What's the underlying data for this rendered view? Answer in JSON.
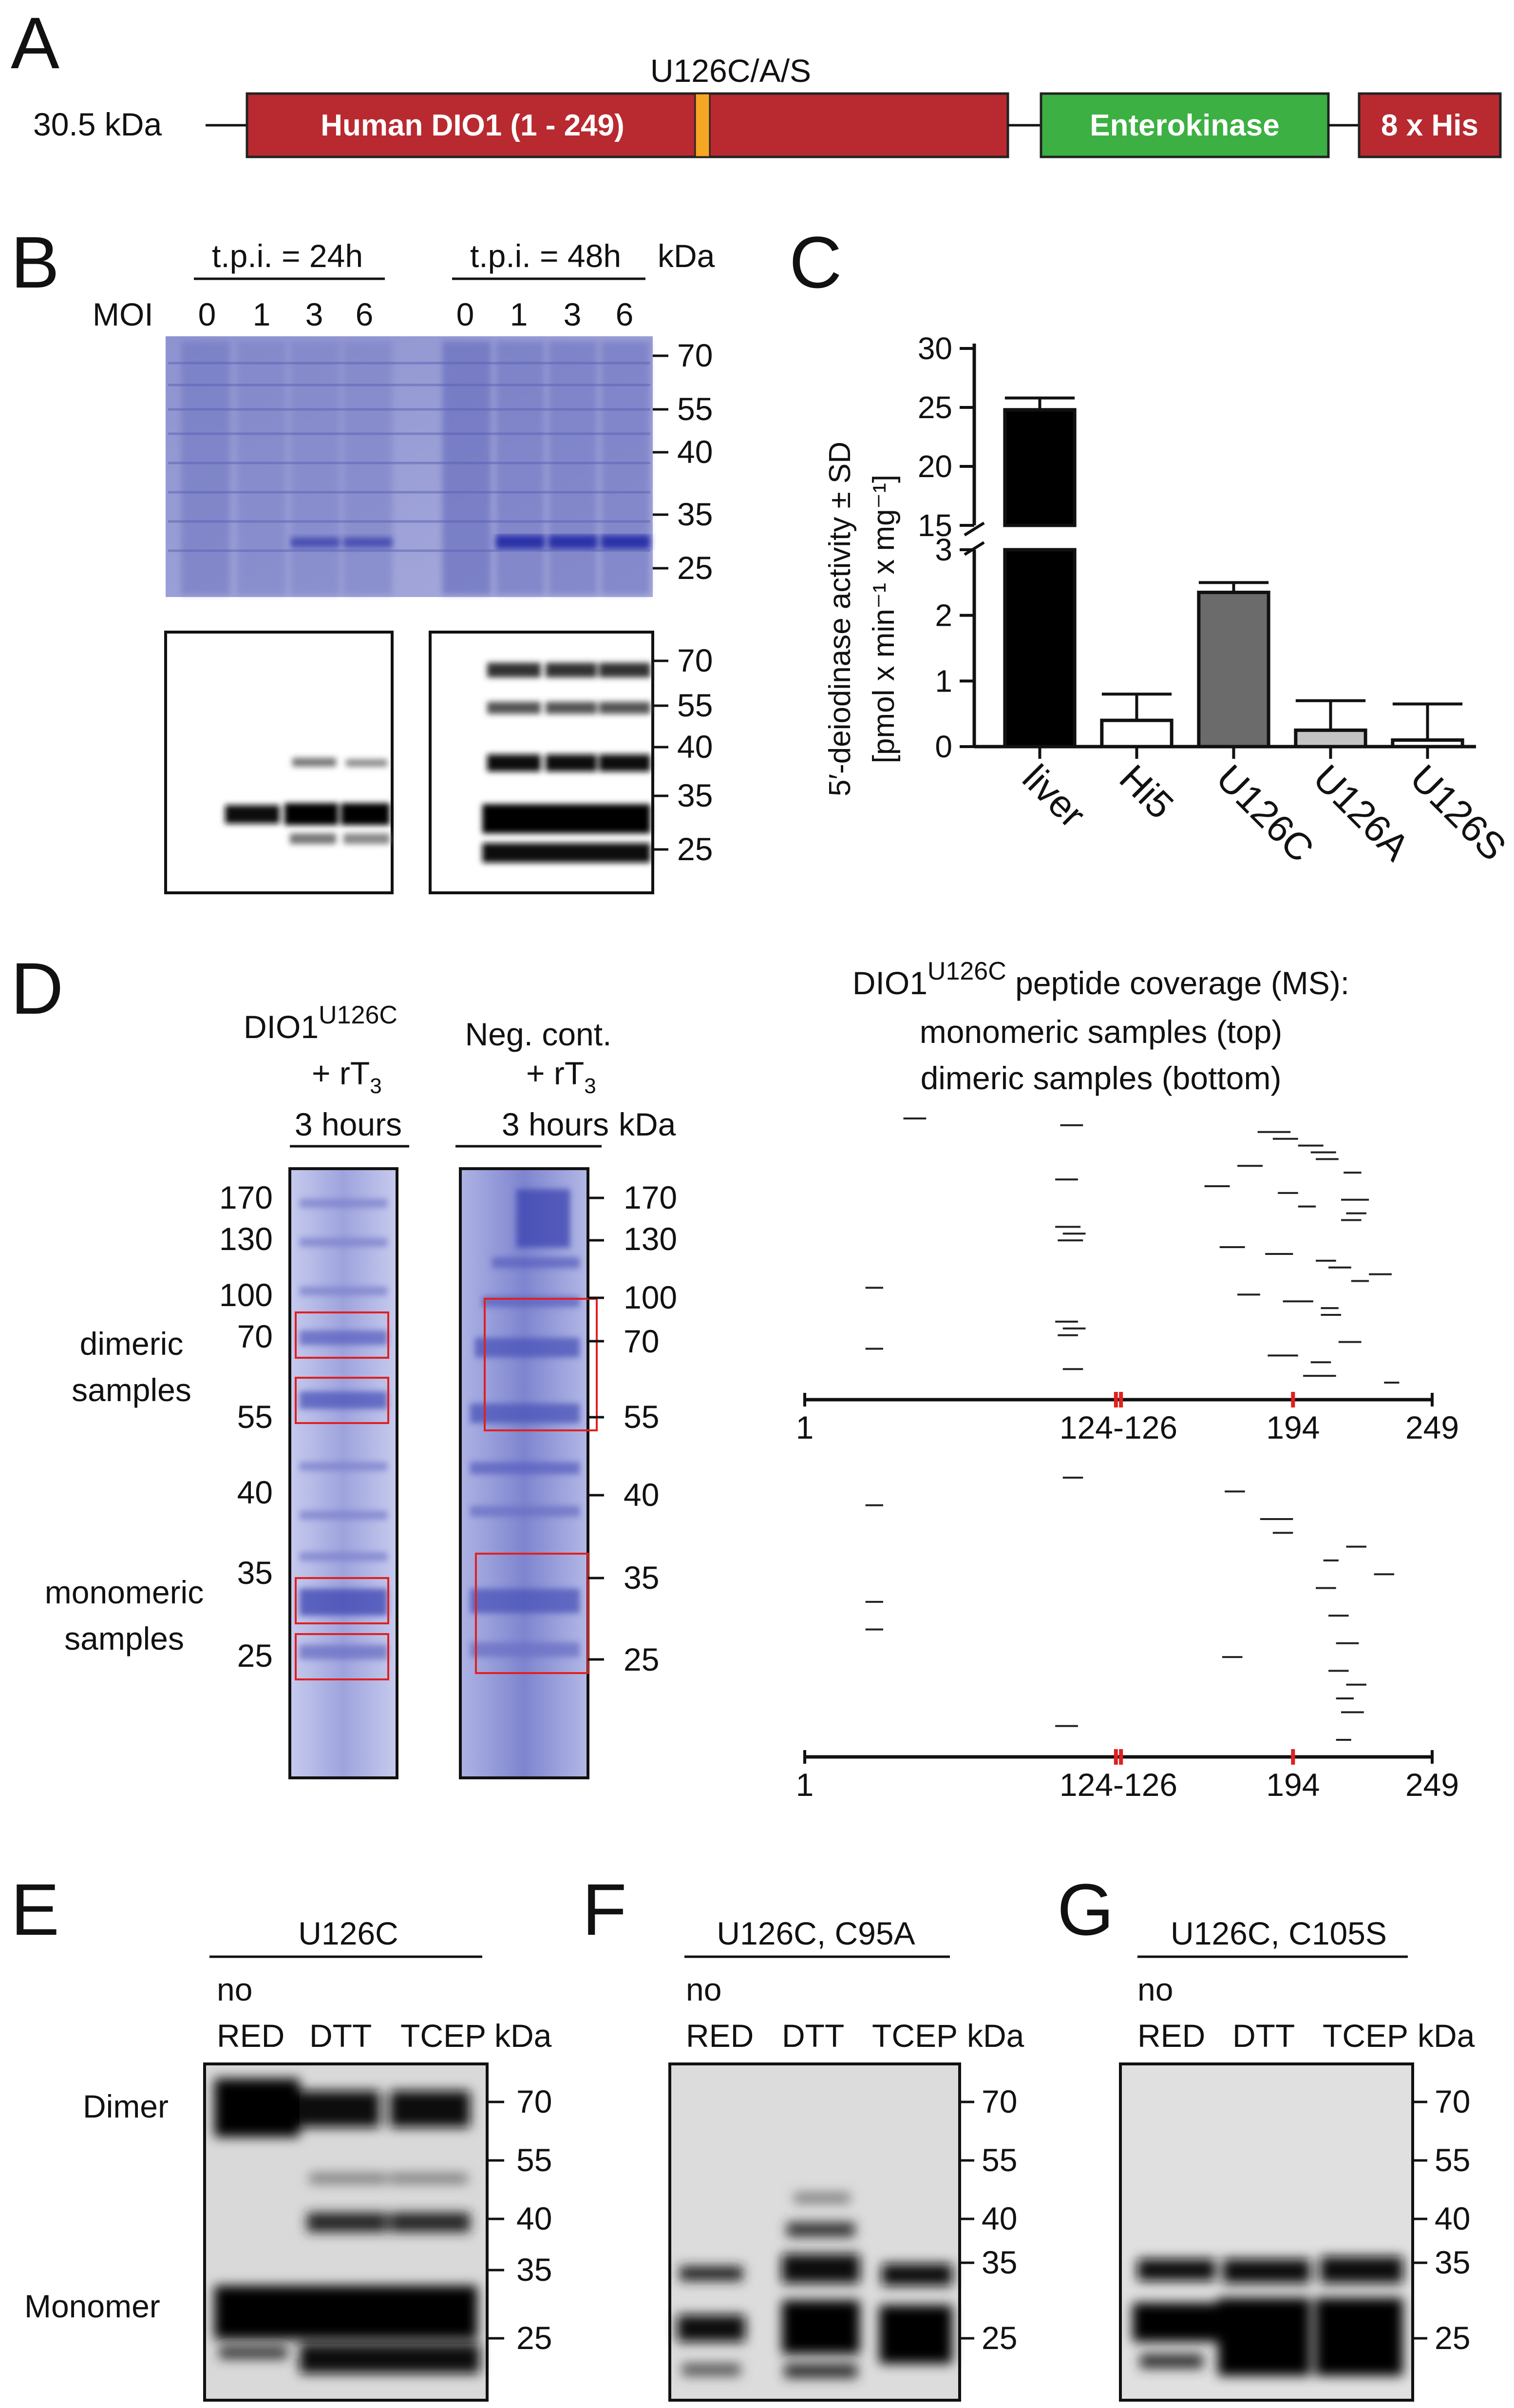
{
  "panels": {
    "a": "A",
    "b": "B",
    "c": "C",
    "d": "D",
    "e": "E",
    "f": "F",
    "g": "G"
  },
  "construct": {
    "mass": "30.5 kDa",
    "mutation": "U126C/A/S",
    "dio1": "Human DIO1 (1 - 249)",
    "ek": "Enterokinase",
    "his": "8 x His",
    "colors": {
      "dio1": "#b82a30",
      "ek": "#3cb043",
      "his": "#b82a30",
      "sec": "#f5a623"
    }
  },
  "gel_b": {
    "tpi24": "t.p.i. = 24h",
    "tpi48": "t.p.i. = 48h",
    "kda": "kDa",
    "moi_label": "MOI",
    "moi": [
      "0",
      "1",
      "3",
      "6",
      "0",
      "1",
      "3",
      "6"
    ],
    "markers_top": [
      "70",
      "55",
      "40",
      "35",
      "25"
    ],
    "markers_bottom": [
      "70",
      "55",
      "40",
      "35",
      "25"
    ]
  },
  "chart_data": {
    "type": "bar",
    "ylabel_line1": "5′-deiodinase activity ± SD",
    "ylabel_line2": "[pmol x min⁻¹ x mg⁻¹]",
    "categories": [
      "liver",
      "Hi5",
      "U126C",
      "U126A",
      "U126S"
    ],
    "values": [
      24.8,
      0.4,
      2.35,
      0.25,
      0.1
    ],
    "errors": [
      1.0,
      0.4,
      0.15,
      0.45,
      0.55
    ],
    "bar_colors": [
      "#000000",
      "#ffffff",
      "#6b6b6b",
      "#c4c4c4",
      "#ffffff"
    ],
    "upper_ticks": [
      15,
      20,
      25,
      30
    ],
    "lower_ticks": [
      0,
      1,
      2,
      3
    ],
    "upper_ylim": [
      15,
      30
    ],
    "lower_ylim": [
      0,
      3
    ],
    "break": true
  },
  "gel_d": {
    "lane1_line1": "DIO1",
    "lane1_sup": "U126C",
    "lane1_line2": "+ rT",
    "lane1_line2_sub": "3",
    "lane1_line3": "3 hours",
    "lane2_line1": "Neg. cont.",
    "lane2_line2": "+ rT",
    "lane2_line2_sub": "3",
    "lane2_line3": "3 hours",
    "kda": "kDa",
    "markers": [
      "170",
      "130",
      "100",
      "70",
      "55",
      "40",
      "35",
      "25"
    ],
    "dimeric": [
      "dimeric",
      "samples"
    ],
    "monomeric": [
      "monomeric",
      "samples"
    ]
  },
  "coverage": {
    "title_prefix": "DIO1",
    "title_sup": "U126C",
    "title_suffix": " peptide coverage (MS):",
    "line2": "monomeric samples (top)",
    "line3": "dimeric samples (bottom)",
    "axis_labels": [
      "1",
      "124-126",
      "194",
      "249"
    ],
    "top_peptides": [
      [
        40,
        49
      ],
      [
        102,
        111
      ],
      [
        180,
        193
      ],
      [
        186,
        196
      ],
      [
        196,
        206
      ],
      [
        201,
        211
      ],
      [
        203,
        212
      ],
      [
        172,
        182
      ],
      [
        214,
        221
      ],
      [
        100,
        109
      ],
      [
        159,
        169
      ],
      [
        188,
        196
      ],
      [
        213,
        224
      ],
      [
        196,
        203
      ],
      [
        215,
        223
      ],
      [
        213,
        221
      ],
      [
        100,
        110
      ],
      [
        103,
        112
      ],
      [
        101,
        111
      ],
      [
        165,
        175
      ],
      [
        183,
        194
      ],
      [
        203,
        211
      ],
      [
        208,
        217
      ],
      [
        224,
        233
      ],
      [
        217,
        224
      ],
      [
        25,
        32
      ],
      [
        172,
        181
      ],
      [
        190,
        202
      ],
      [
        205,
        212
      ],
      [
        205,
        213
      ],
      [
        100,
        109
      ],
      [
        103,
        112
      ],
      [
        101,
        109
      ],
      [
        212,
        221
      ],
      [
        25,
        32
      ],
      [
        184,
        196
      ],
      [
        201,
        209
      ],
      [
        103,
        111
      ],
      [
        198,
        211
      ],
      [
        230,
        236
      ]
    ],
    "bottom_peptides": [
      [
        103,
        111
      ],
      [
        167,
        175
      ],
      [
        25,
        32
      ],
      [
        181,
        194
      ],
      [
        186,
        194
      ],
      [
        215,
        223
      ],
      [
        206,
        212
      ],
      [
        226,
        234
      ],
      [
        203,
        211
      ],
      [
        25,
        32
      ],
      [
        208,
        216
      ],
      [
        25,
        32
      ],
      [
        211,
        220
      ],
      [
        166,
        174
      ],
      [
        208,
        216
      ],
      [
        215,
        223
      ],
      [
        211,
        218
      ],
      [
        213,
        222
      ],
      [
        100,
        109
      ],
      [
        211,
        217
      ]
    ]
  },
  "gel_e": {
    "title": "U126C",
    "cond_line1": "no",
    "conds": [
      "RED",
      "DTT",
      "TCEP"
    ],
    "kda": "kDa",
    "markers": [
      "70",
      "55",
      "40",
      "35",
      "25"
    ],
    "dimer": "Dimer",
    "monomer": "Monomer"
  },
  "gel_f": {
    "title": "U126C, C95A",
    "cond_line1": "no",
    "conds": [
      "RED",
      "DTT",
      "TCEP"
    ],
    "kda": "kDa",
    "markers": [
      "70",
      "55",
      "40",
      "35",
      "25"
    ]
  },
  "gel_g": {
    "title": "U126C, C105S",
    "cond_line1": "no",
    "conds": [
      "RED",
      "DTT",
      "TCEP"
    ],
    "kda": "kDa",
    "markers": [
      "70",
      "55",
      "40",
      "35",
      "25"
    ]
  }
}
